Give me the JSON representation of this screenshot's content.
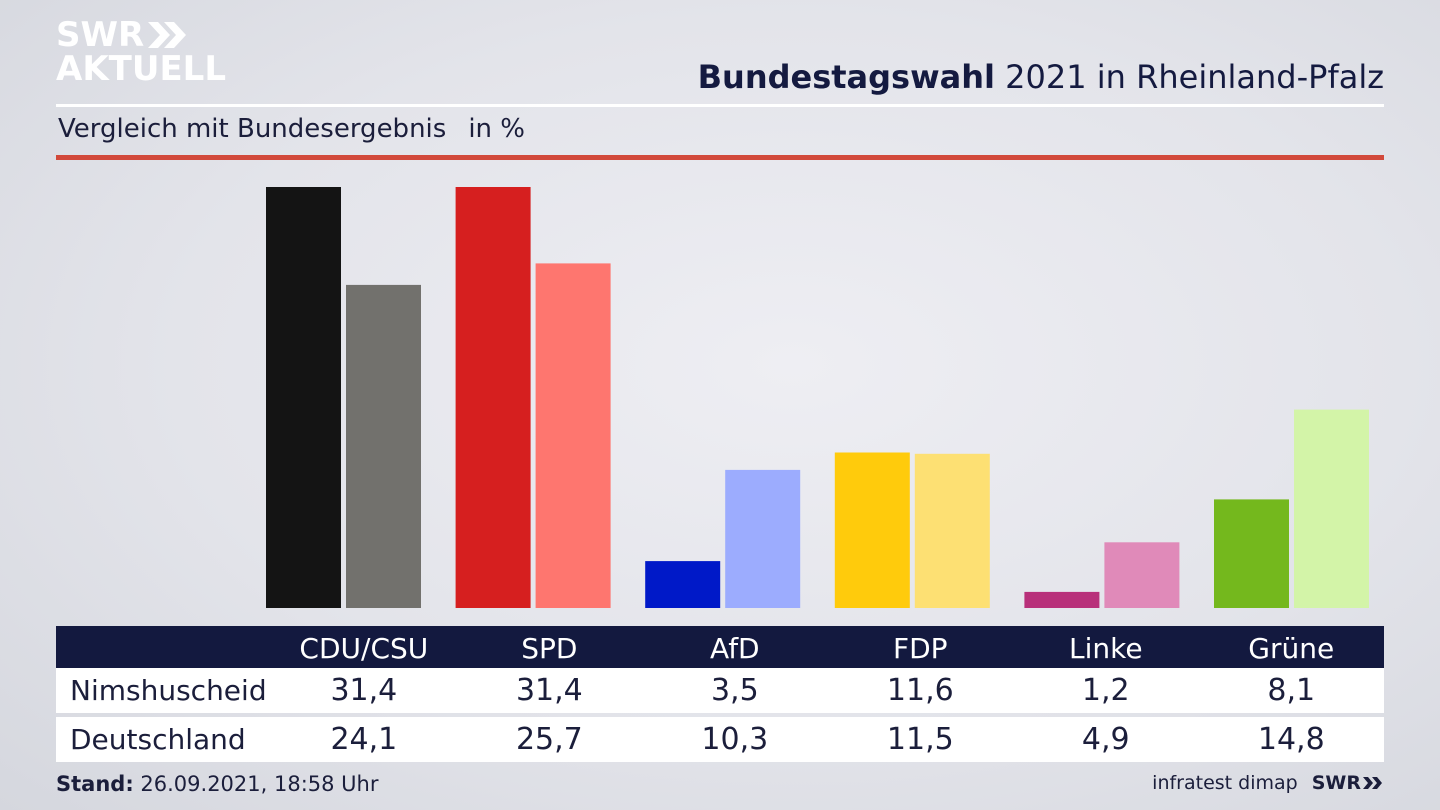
{
  "logo": {
    "line1": "SWR",
    "line2": "AKTUELL"
  },
  "header": {
    "title_bold": "Bundestagswahl",
    "title_rest": " 2021 in Rheinland-Pfalz"
  },
  "subtitle": {
    "text": "Vergleich mit Bundesergebnis",
    "unit": "in %"
  },
  "colors": {
    "accent_line": "#d2493b",
    "table_header": "#13193f"
  },
  "chart_data": {
    "type": "bar",
    "categories": [
      "CDU/CSU",
      "SPD",
      "AfD",
      "FDP",
      "Linke",
      "Grüne"
    ],
    "series": [
      {
        "name": "Nimshuscheid",
        "values": [
          31.4,
          31.4,
          3.5,
          11.6,
          1.2,
          8.1
        ],
        "colors": [
          "#141414",
          "#d61f1f",
          "#0019c8",
          "#ffcb0c",
          "#b8307a",
          "#74b81d"
        ]
      },
      {
        "name": "Deutschland",
        "values": [
          24.1,
          25.7,
          10.3,
          11.5,
          4.9,
          14.8
        ],
        "colors": [
          "#72716d",
          "#fe766f",
          "#9cacfe",
          "#fde073",
          "#e08ab9",
          "#d3f4a8"
        ]
      }
    ],
    "ylim": [
      0,
      31.4
    ],
    "grid": false,
    "legend": "table-below"
  },
  "table": {
    "rows": [
      {
        "label": "Nimshuscheid",
        "values": [
          "31,4",
          "31,4",
          "3,5",
          "11,6",
          "1,2",
          "8,1"
        ]
      },
      {
        "label": "Deutschland",
        "values": [
          "24,1",
          "25,7",
          "10,3",
          "11,5",
          "4,9",
          "14,8"
        ]
      }
    ]
  },
  "footer": {
    "stand_label": "Stand:",
    "stand_value": " 26.09.2021, 18:58 Uhr",
    "source": "infratest dimap",
    "brand": "SWR"
  }
}
